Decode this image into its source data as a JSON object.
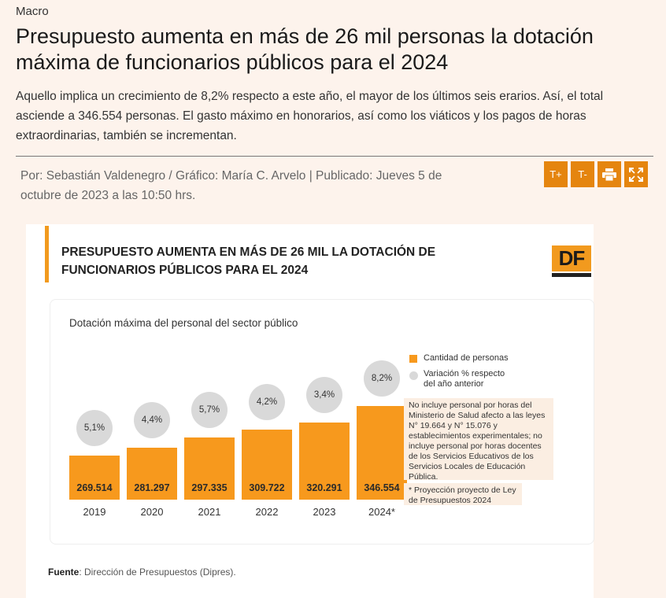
{
  "article": {
    "section": "Macro",
    "headline": "Presupuesto aumenta en más de 26 mil personas la dotación máxima de funcionarios públicos para el 2024",
    "summary": "Aquello implica un crecimiento de 8,2% respecto a este año, el mayor de los últimos seis erarios. Así, el total asciende a 346.554 personas. El gasto máximo en honorarios, así como los viáticos y los pagos de horas extraordinarias, también se incrementan.",
    "byline": "Por: Sebastián Valdenegro / Gráfico: María C. Arvelo | Publicado: Jueves 5 de octubre de 2023 a las 10:50 hrs."
  },
  "tools": {
    "font_increase": "T+",
    "font_decrease": "T-",
    "print_icon": "printer-icon",
    "fullscreen_icon": "fullscreen-icon"
  },
  "infographic": {
    "title": "PRESUPUESTO AUMENTA EN MÁS DE 26 MIL LA DOTACIÓN DE FUNCIONARIOS PÚBLICOS PARA EL 2024",
    "logo": "DF",
    "panel_title": "Dotación máxima del personal del sector público",
    "legend": {
      "bars": "Cantidad de personas",
      "circles": "Variación % respecto del año anterior"
    },
    "note_1": "No incluye personal por horas del Ministerio de Salud afecto a las leyes N° 19.664 y N° 15.076 y establecimientos experimentales; no incluye personal por horas docentes de los Servicios Educativos de los Servicios Locales de Educación Pública.",
    "note_2": "* Proyección proyecto de Ley de Presupuestos 2024",
    "source_label": "Fuente",
    "source_text": ": Dirección de Presupuestos (Dipres)."
  },
  "chart_data": {
    "type": "bar",
    "categories": [
      "2019",
      "2020",
      "2021",
      "2022",
      "2023",
      "2024*"
    ],
    "series": [
      {
        "name": "Cantidad de personas",
        "values": [
          269514,
          281297,
          297335,
          309722,
          320291,
          346554
        ]
      }
    ],
    "value_labels": [
      "269.514",
      "281.297",
      "297.335",
      "309.722",
      "320.291",
      "346.554"
    ],
    "variation_labels": [
      "5,1%",
      "4,4%",
      "5,7%",
      "4,2%",
      "3,4%",
      "8,2%"
    ],
    "title": "Dotación máxima del personal del sector público",
    "colors": {
      "bars": "#f7991d",
      "circles": "#d9d9d9"
    }
  }
}
